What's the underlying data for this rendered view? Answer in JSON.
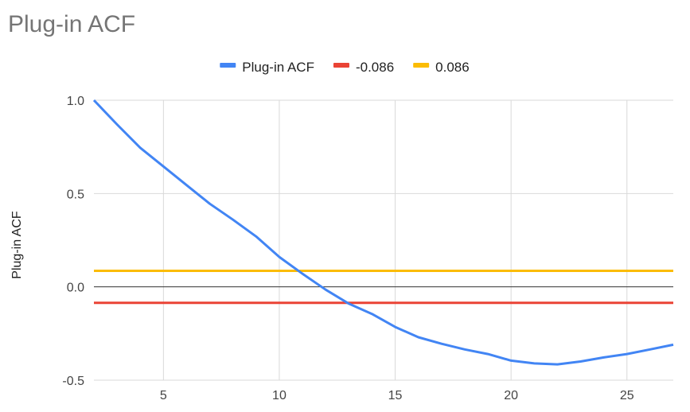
{
  "chart_data": {
    "type": "line",
    "title": "Plug-in ACF",
    "ylabel": "Plug-in ACF",
    "xlabel": "",
    "xlim": [
      2,
      27
    ],
    "ylim": [
      -0.5,
      1.0
    ],
    "x_ticks": [
      5,
      10,
      15,
      20,
      25
    ],
    "y_ticks": [
      -0.5,
      0.0,
      0.5,
      1.0
    ],
    "y_tick_labels": [
      "-0.5",
      "0.0",
      "0.5",
      "1.0"
    ],
    "grid": true,
    "legend_position": "top",
    "series": [
      {
        "name": "Plug-in ACF",
        "color": "#4285F4",
        "x": [
          2,
          3,
          4,
          5,
          6,
          7,
          8,
          9,
          10,
          11,
          12,
          13,
          14,
          15,
          16,
          17,
          18,
          19,
          20,
          21,
          22,
          23,
          24,
          25,
          26,
          27
        ],
        "y": [
          1.0,
          0.87,
          0.745,
          0.645,
          0.545,
          0.445,
          0.36,
          0.27,
          0.16,
          0.07,
          -0.015,
          -0.09,
          -0.145,
          -0.215,
          -0.27,
          -0.305,
          -0.335,
          -0.36,
          -0.395,
          -0.41,
          -0.415,
          -0.4,
          -0.378,
          -0.36,
          -0.335,
          -0.31
        ]
      },
      {
        "name": "-0.086",
        "color": "#EA4335",
        "x": [
          2,
          27
        ],
        "y": [
          -0.086,
          -0.086
        ]
      },
      {
        "name": "0.086",
        "color": "#FBBC04",
        "x": [
          2,
          27
        ],
        "y": [
          0.086,
          0.086
        ]
      }
    ]
  }
}
